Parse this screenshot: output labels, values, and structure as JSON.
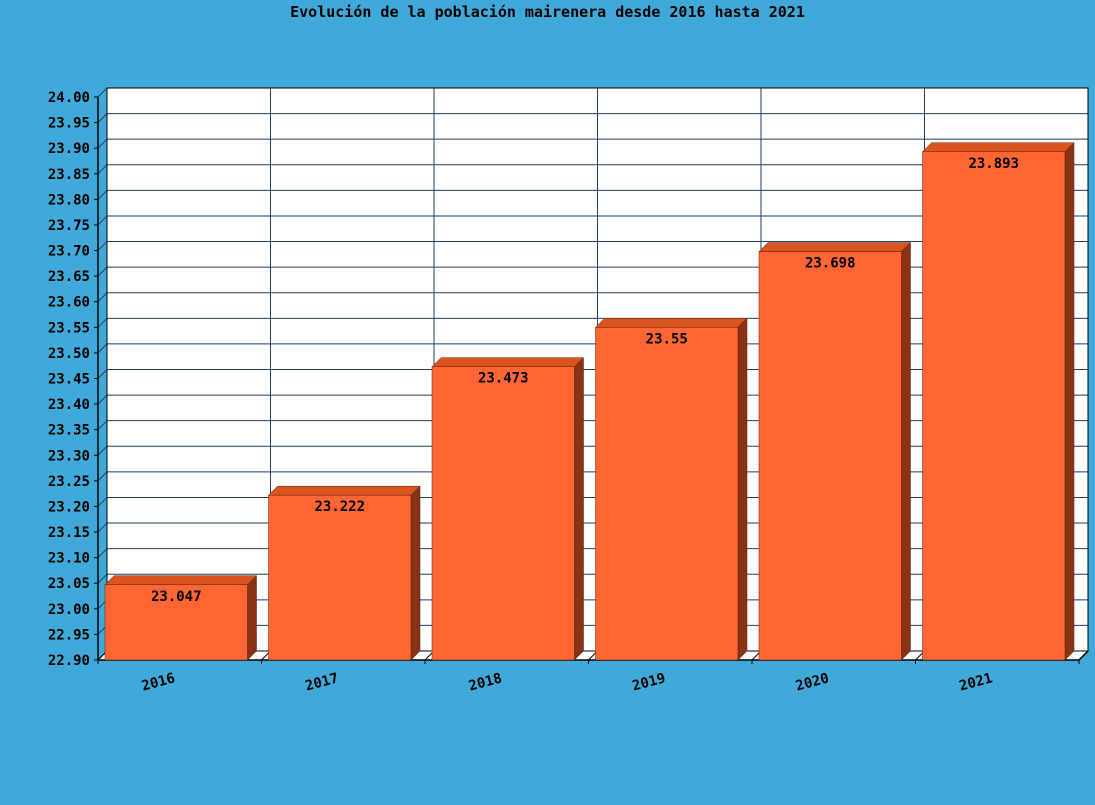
{
  "chart_data": {
    "type": "bar",
    "title": "Evolución de la población mairenera desde 2016 hasta 2021",
    "xlabel": "",
    "ylabel": "",
    "categories": [
      "2016",
      "2017",
      "2018",
      "2019",
      "2020",
      "2021"
    ],
    "values": [
      23.047,
      23.222,
      23.473,
      23.55,
      23.698,
      23.893
    ],
    "value_labels": [
      "23.047",
      "23.222",
      "23.473",
      "23.55",
      "23.698",
      "23.893"
    ],
    "ylim": [
      22.9,
      24.0
    ],
    "yticks": [
      "22.90",
      "22.95",
      "23.00",
      "23.05",
      "23.10",
      "23.15",
      "23.20",
      "23.25",
      "23.30",
      "23.35",
      "23.40",
      "23.45",
      "23.50",
      "23.55",
      "23.60",
      "23.65",
      "23.70",
      "23.75",
      "23.80",
      "23.85",
      "23.90",
      "23.95",
      "24.00"
    ],
    "grid": true,
    "legend": "none",
    "colors": {
      "background": "#3fa9d9",
      "plot_area": "#ffffff",
      "grid": "#1f3f66",
      "bar_front": "#ff6633",
      "bar_top": "#d9541f",
      "bar_side": "#8a3216"
    }
  }
}
